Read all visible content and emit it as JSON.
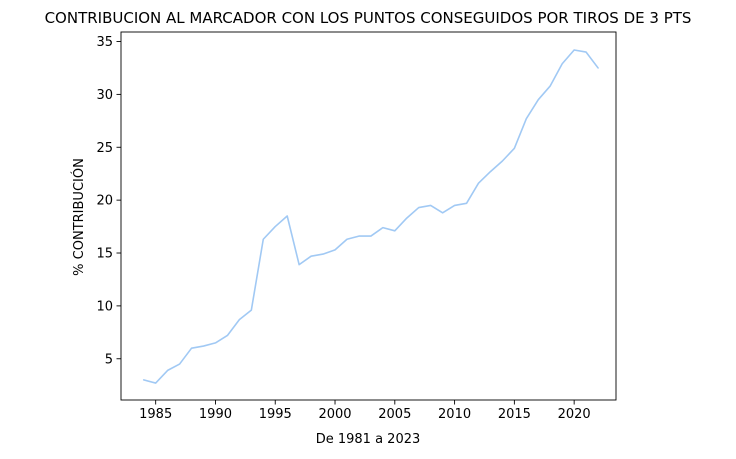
{
  "chart_data": {
    "type": "line",
    "title": "CONTRIBUCION AL MARCADOR CON LOS PUNTOS CONSEGUIDOS POR TIROS DE 3 PTS",
    "xlabel": "De 1981 a 2023",
    "ylabel": "% CONTRIBUCIÓN",
    "xlim": [
      1982.1,
      2023.5
    ],
    "ylim": [
      1.1,
      35.9
    ],
    "x_ticks": [
      1985,
      1990,
      1995,
      2000,
      2005,
      2010,
      2015,
      2020
    ],
    "y_ticks": [
      5,
      10,
      15,
      20,
      25,
      30,
      35
    ],
    "grid": false,
    "legend": "none",
    "line_color": "#a1c9f4",
    "series": [
      {
        "x": [
          1984,
          1985,
          1986,
          1987,
          1988,
          1989,
          1990,
          1991,
          1992,
          1993,
          1994,
          1995,
          1996,
          1997,
          1998,
          1999,
          2000,
          2001,
          2002,
          2003,
          2004,
          2005,
          2006,
          2007,
          2008,
          2009,
          2010,
          2011,
          2012,
          2013,
          2014,
          2015,
          2016,
          2017,
          2018,
          2019,
          2020,
          2021,
          2022
        ],
        "values": [
          3.0,
          2.7,
          3.9,
          4.5,
          6.0,
          6.2,
          6.5,
          7.2,
          8.7,
          9.6,
          16.3,
          17.5,
          18.5,
          13.9,
          14.7,
          14.9,
          15.3,
          16.3,
          16.6,
          16.6,
          17.4,
          17.1,
          18.3,
          19.3,
          19.5,
          18.8,
          19.5,
          19.7,
          21.6,
          22.7,
          23.7,
          24.9,
          27.7,
          29.5,
          30.8,
          32.9,
          34.2,
          34.0,
          32.5
        ]
      }
    ]
  }
}
